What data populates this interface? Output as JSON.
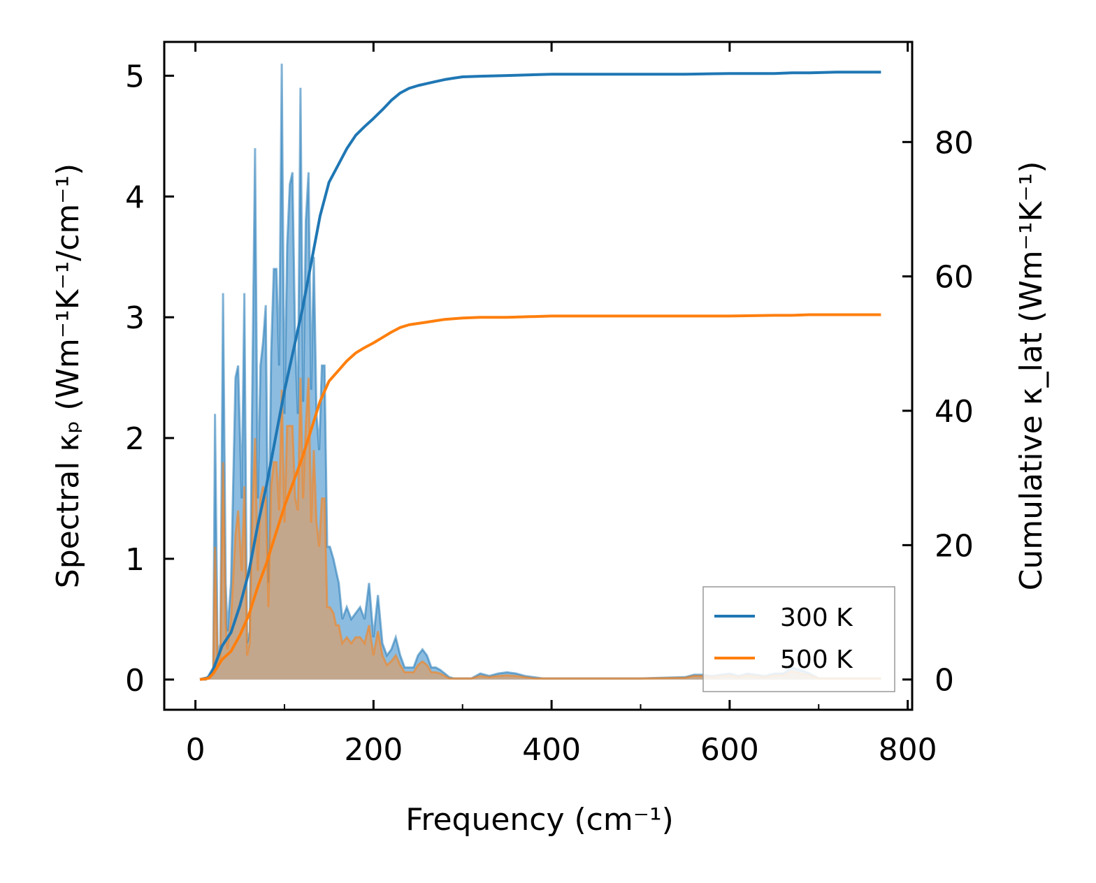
{
  "chart_data": {
    "type": "line",
    "xlabel": "Frequency (cm⁻¹)",
    "ylabel_left": "Spectral κₚ (Wm⁻¹K⁻¹/cm⁻¹)",
    "ylabel_right": "Cumulative κ_lat (Wm⁻¹K⁻¹)",
    "xlim": [
      -35,
      805
    ],
    "ylim_left": [
      -0.25,
      5.28
    ],
    "ylim_right": [
      -4.5,
      94.9
    ],
    "xticks": [
      "0",
      "200",
      "400",
      "600",
      "800"
    ],
    "yticks_left": [
      "0",
      "1",
      "2",
      "3",
      "4",
      "5"
    ],
    "yticks_right": [
      "0",
      "20",
      "40",
      "60",
      "80"
    ],
    "legend_position": "lower-right",
    "colors": {
      "s300": "#1f77b4",
      "s500": "#ff7f0e",
      "fill300": "#5b9fd3",
      "fill500": "#d6a070"
    },
    "series": [
      {
        "name": "300 K",
        "axis": "right",
        "kind": "cumulative",
        "x": [
          5,
          15,
          20,
          30,
          40,
          50,
          60,
          70,
          80,
          90,
          100,
          110,
          120,
          130,
          140,
          150,
          160,
          170,
          180,
          190,
          200,
          210,
          220,
          230,
          240,
          250,
          260,
          270,
          280,
          290,
          300,
          320,
          350,
          400,
          450,
          500,
          550,
          600,
          650,
          670,
          690,
          720,
          770
        ],
        "y": [
          0,
          0.3,
          1.5,
          5,
          7,
          11,
          16,
          23,
          29,
          36,
          43,
          49,
          55,
          62,
          69,
          74,
          76.5,
          79,
          81,
          82.3,
          83.5,
          84.8,
          86.2,
          87.3,
          88,
          88.4,
          88.7,
          89,
          89.3,
          89.5,
          89.7,
          89.8,
          89.9,
          90.1,
          90.1,
          90.1,
          90.1,
          90.2,
          90.2,
          90.3,
          90.3,
          90.4,
          90.4
        ]
      },
      {
        "name": "500 K",
        "axis": "right",
        "kind": "cumulative",
        "x": [
          5,
          15,
          20,
          30,
          40,
          50,
          60,
          70,
          80,
          90,
          100,
          110,
          120,
          130,
          140,
          150,
          160,
          170,
          180,
          190,
          200,
          210,
          220,
          230,
          240,
          250,
          260,
          270,
          280,
          290,
          300,
          320,
          350,
          400,
          450,
          500,
          550,
          600,
          650,
          670,
          690,
          720,
          770
        ],
        "y": [
          0,
          0.2,
          0.9,
          3,
          4.2,
          6.6,
          9.6,
          13.8,
          17.4,
          21.6,
          25.8,
          29.4,
          33,
          37.2,
          41.4,
          44.4,
          45.9,
          47.4,
          48.6,
          49.4,
          50.1,
          50.9,
          51.7,
          52.4,
          52.8,
          53,
          53.2,
          53.4,
          53.6,
          53.7,
          53.8,
          53.9,
          53.9,
          54.1,
          54.1,
          54.1,
          54.1,
          54.1,
          54.2,
          54.2,
          54.3,
          54.3,
          54.3
        ]
      },
      {
        "name": "",
        "axis": "left",
        "kind": "spectral",
        "temperature": "300 K",
        "x": [
          5,
          12,
          16,
          20,
          22,
          25,
          28,
          31,
          34,
          36,
          40,
          45,
          48,
          52,
          55,
          58,
          61,
          64,
          67,
          70,
          73,
          76,
          79,
          82,
          85,
          88,
          91,
          94,
          97,
          100,
          103,
          106,
          109,
          112,
          115,
          118,
          121,
          124,
          127,
          130,
          133,
          136,
          139,
          142,
          145,
          148,
          151,
          155,
          158,
          161,
          165,
          170,
          175,
          180,
          185,
          190,
          195,
          200,
          205,
          210,
          215,
          220,
          225,
          230,
          235,
          240,
          245,
          250,
          255,
          260,
          265,
          270,
          275,
          280,
          285,
          290,
          295,
          300,
          310,
          320,
          330,
          340,
          350,
          360,
          370,
          380,
          390,
          400,
          450,
          500,
          550,
          560,
          570,
          580,
          600,
          610,
          620,
          640,
          650,
          660,
          670,
          680,
          690,
          700,
          720,
          770
        ],
        "y": [
          0,
          0,
          0.05,
          0.1,
          2.2,
          0.2,
          0.3,
          3.2,
          0.8,
          0.4,
          0.8,
          2.5,
          2.6,
          1.5,
          3.2,
          0.3,
          0.4,
          2.5,
          4.4,
          1.5,
          2.6,
          2.8,
          3.1,
          0.8,
          2.7,
          3.4,
          3.4,
          2.6,
          5.1,
          2.2,
          3.6,
          4.1,
          4.2,
          2.8,
          2.2,
          4.9,
          2.3,
          3.8,
          4.2,
          2.4,
          3.5,
          2.2,
          1.9,
          2.6,
          2.6,
          1.1,
          1.1,
          1.0,
          0.9,
          0.8,
          0.5,
          0.6,
          0.5,
          0.55,
          0.6,
          0.5,
          0.8,
          0.35,
          0.7,
          0.3,
          0.2,
          0.25,
          0.35,
          0.2,
          0.1,
          0.1,
          0.1,
          0.2,
          0.25,
          0.2,
          0.1,
          0.1,
          0.08,
          0.05,
          0.02,
          0.01,
          0.01,
          0.01,
          0.01,
          0.05,
          0.03,
          0.05,
          0.06,
          0.05,
          0.03,
          0.02,
          0.01,
          0.01,
          0.01,
          0.01,
          0.02,
          0.04,
          0.04,
          0.03,
          0.05,
          0.03,
          0.05,
          0.03,
          0.05,
          0.05,
          0.1,
          0.08,
          0.05,
          0.01,
          0.01,
          0.01
        ]
      },
      {
        "name": "",
        "axis": "left",
        "kind": "spectral",
        "temperature": "500 K",
        "x": [
          5,
          12,
          16,
          20,
          22,
          25,
          28,
          31,
          34,
          36,
          40,
          45,
          48,
          52,
          55,
          58,
          61,
          64,
          67,
          70,
          73,
          76,
          79,
          82,
          85,
          88,
          91,
          94,
          97,
          100,
          103,
          106,
          109,
          112,
          115,
          118,
          121,
          124,
          127,
          130,
          133,
          136,
          139,
          142,
          145,
          148,
          151,
          155,
          158,
          161,
          165,
          170,
          175,
          180,
          185,
          190,
          195,
          200,
          205,
          210,
          215,
          220,
          225,
          230,
          235,
          240,
          245,
          250,
          255,
          260,
          265,
          270,
          275,
          280,
          285,
          290,
          295,
          300,
          310,
          320,
          330,
          340,
          350,
          360,
          370,
          380,
          390,
          400,
          450,
          500,
          550,
          560,
          570,
          580,
          600,
          610,
          620,
          640,
          650,
          660,
          670,
          680,
          690,
          700,
          720,
          770
        ],
        "y": [
          0,
          0,
          0.03,
          0.06,
          1.1,
          0.1,
          0.2,
          1.8,
          0.45,
          0.25,
          0.5,
          1.2,
          1.4,
          0.9,
          1.6,
          0.2,
          0.3,
          1.4,
          2.0,
          0.9,
          1.5,
          1.6,
          1.5,
          0.6,
          1.6,
          1.8,
          1.8,
          1.4,
          2.4,
          1.3,
          2.1,
          2.1,
          2.1,
          1.5,
          1.4,
          2.5,
          1.5,
          2.1,
          2.5,
          1.3,
          1.9,
          1.3,
          1.1,
          1.5,
          1.5,
          0.6,
          0.6,
          0.55,
          0.45,
          0.45,
          0.3,
          0.35,
          0.3,
          0.35,
          0.35,
          0.3,
          0.45,
          0.2,
          0.4,
          0.2,
          0.12,
          0.15,
          0.2,
          0.12,
          0.06,
          0.06,
          0.06,
          0.12,
          0.15,
          0.12,
          0.06,
          0.06,
          0.05,
          0.03,
          0.01,
          0.01,
          0.01,
          0.01,
          0.01,
          0.03,
          0.02,
          0.03,
          0.035,
          0.03,
          0.02,
          0.01,
          0.01,
          0.01,
          0.01,
          0.01,
          0.015,
          0.03,
          0.03,
          0.02,
          0.035,
          0.02,
          0.035,
          0.02,
          0.035,
          0.035,
          0.07,
          0.05,
          0.035,
          0.01,
          0.01,
          0.01
        ]
      }
    ]
  }
}
